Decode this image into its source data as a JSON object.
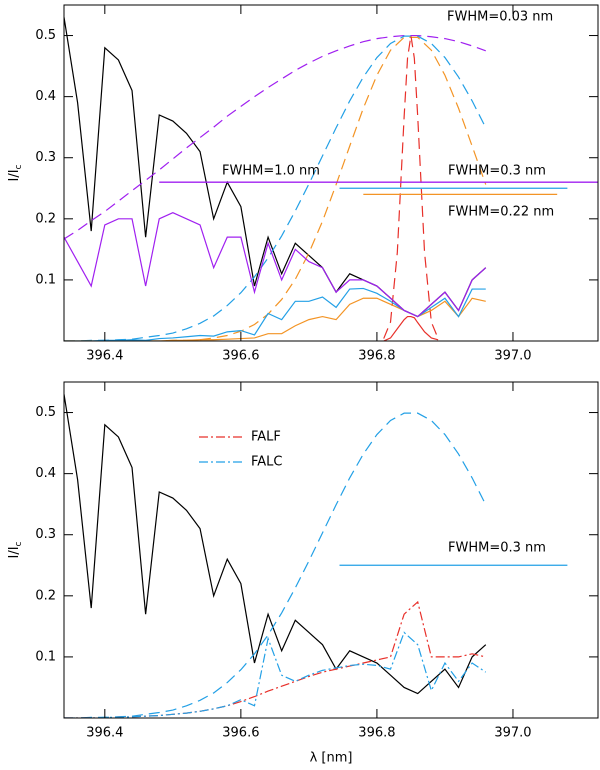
{
  "chart_data": [
    {
      "type": "line",
      "ylabel": [
        "I/I",
        "c"
      ],
      "xlim": [
        396.34,
        397.125
      ],
      "ylim": [
        0,
        0.55
      ],
      "xticks": [
        396.4,
        396.6,
        396.8,
        {
          "value": 397.0,
          "label": "397.0"
        }
      ],
      "yticks": [
        0.1,
        0.2,
        0.3,
        0.4,
        0.5
      ],
      "x": [
        396.34,
        396.36,
        396.38,
        396.4,
        396.42,
        396.44,
        396.46,
        396.48,
        396.5,
        396.52,
        396.54,
        396.56,
        396.58,
        396.6,
        396.62,
        396.64,
        396.66,
        396.68,
        396.7,
        396.72,
        396.74,
        396.76,
        396.78,
        396.8,
        396.82,
        396.84,
        396.86,
        396.88,
        396.9,
        396.92,
        396.94,
        396.96
      ],
      "series": [
        {
          "color": "#000000",
          "dash": "solid",
          "values": [
            0.53,
            0.39,
            0.18,
            0.48,
            0.46,
            0.41,
            0.17,
            0.37,
            0.36,
            0.34,
            0.31,
            0.2,
            0.26,
            0.22,
            0.09,
            0.17,
            0.11,
            0.16,
            0.14,
            0.12,
            0.08,
            0.11,
            0.1,
            0.09,
            0.07,
            0.05,
            0.04,
            0.06,
            0.08,
            0.05,
            0.1,
            0.12
          ]
        },
        {
          "color": "#a020f0",
          "dash": "dashed",
          "values": [
            0.167,
            0.181,
            0.197,
            0.212,
            0.229,
            0.246,
            0.263,
            0.28,
            0.298,
            0.316,
            0.333,
            0.35,
            0.368,
            0.384,
            0.4,
            0.415,
            0.429,
            0.443,
            0.455,
            0.466,
            0.475,
            0.483,
            0.49,
            0.495,
            0.498,
            0.5,
            0.5,
            0.498,
            0.495,
            0.49,
            0.483,
            0.475
          ]
        },
        {
          "color": "#23a0e6",
          "dash": "dashed",
          "values": [
            0,
            0,
            0.001,
            0.001,
            0.002,
            0.003,
            0.006,
            0.009,
            0.013,
            0.02,
            0.029,
            0.041,
            0.058,
            0.079,
            0.105,
            0.136,
            0.172,
            0.213,
            0.257,
            0.303,
            0.349,
            0.393,
            0.432,
            0.464,
            0.487,
            0.499,
            0.499,
            0.487,
            0.464,
            0.432,
            0.393,
            0.349
          ]
        },
        {
          "color": "#f39425",
          "dash": "dashed",
          "values": [
            0,
            0,
            0,
            0,
            0,
            0,
            0,
            0,
            0.001,
            0.001,
            0.002,
            0.005,
            0.009,
            0.016,
            0.027,
            0.044,
            0.068,
            0.101,
            0.144,
            0.196,
            0.256,
            0.319,
            0.381,
            0.435,
            0.476,
            0.497,
            0.497,
            0.476,
            0.435,
            0.381,
            0.319,
            0.256
          ]
        },
        {
          "color": "#e8302a",
          "dash": "dashed",
          "x": [
            396.81,
            396.82,
            396.83,
            396.84,
            396.845,
            396.85,
            396.855,
            396.86,
            396.87,
            396.88,
            396.89
          ],
          "values": [
            0.004,
            0.031,
            0.145,
            0.367,
            0.463,
            0.5,
            0.463,
            0.367,
            0.145,
            0.031,
            0.004
          ]
        },
        {
          "color": "#f39425",
          "dash": "solid",
          "values": [
            0,
            0,
            0,
            0,
            0,
            0,
            0,
            0,
            0.001,
            0.001,
            0.002,
            0.002,
            0.003,
            0.004,
            0.005,
            0.012,
            0.012,
            0.025,
            0.035,
            0.04,
            0.035,
            0.06,
            0.07,
            0.07,
            0.06,
            0.05,
            0.04,
            0.05,
            0.065,
            0.04,
            0.07,
            0.065
          ]
        },
        {
          "color": "#23a0e6",
          "dash": "solid",
          "values": [
            0,
            0,
            0,
            0.001,
            0.001,
            0.002,
            0.001,
            0.004,
            0.005,
            0.007,
            0.009,
            0.008,
            0.015,
            0.017,
            0.01,
            0.045,
            0.035,
            0.065,
            0.065,
            0.072,
            0.055,
            0.085,
            0.086,
            0.078,
            0.065,
            0.05,
            0.04,
            0.055,
            0.07,
            0.04,
            0.085,
            0.085
          ]
        },
        {
          "color": "#e8302a",
          "dash": "solid",
          "x": [
            396.81,
            396.82,
            396.83,
            396.84,
            396.845,
            396.85,
            396.855,
            396.86,
            396.87,
            396.88,
            396.89
          ],
          "values": [
            0,
            0.005,
            0.02,
            0.035,
            0.04,
            0.04,
            0.038,
            0.03,
            0.015,
            0.005,
            0.002
          ]
        },
        {
          "color": "#a020f0",
          "dash": "solid",
          "values": [
            0.17,
            0.13,
            0.09,
            0.19,
            0.2,
            0.2,
            0.09,
            0.2,
            0.21,
            0.2,
            0.19,
            0.12,
            0.17,
            0.17,
            0.08,
            0.16,
            0.1,
            0.15,
            0.13,
            0.12,
            0.08,
            0.1,
            0.1,
            0.09,
            0.07,
            0.05,
            0.04,
            0.06,
            0.08,
            0.05,
            0.1,
            0.12
          ]
        }
      ],
      "fwhm_lines": [
        {
          "x": [
            396.48,
            397.125
          ],
          "y": 0.26,
          "color": "#a020f0"
        },
        {
          "x": [
            396.745,
            397.08
          ],
          "y": 0.25,
          "color": "#23a0e6"
        },
        {
          "x": [
            396.78,
            397.065
          ],
          "y": 0.24,
          "color": "#f39425"
        }
      ],
      "annotations": [
        {
          "text": "FWHM=0.03 nm",
          "color": "#e8302a"
        },
        {
          "text": "FWHM=1.0 nm",
          "color": "#a020f0"
        },
        {
          "text": "FWHM=0.3 nm",
          "color": "#23a0e6"
        },
        {
          "text": "FWHM=0.22 nm",
          "color": "#f39425"
        }
      ]
    },
    {
      "type": "line",
      "ylabel": [
        "I/I",
        "c"
      ],
      "xlabel": "λ [nm]",
      "legend": "upper left",
      "xlim": [
        396.34,
        397.125
      ],
      "ylim": [
        0,
        0.55
      ],
      "xticks": [
        396.4,
        396.6,
        396.8,
        {
          "value": 397.0,
          "label": "397.0"
        }
      ],
      "yticks": [
        0.1,
        0.2,
        0.3,
        0.4,
        0.5
      ],
      "x": [
        396.34,
        396.36,
        396.38,
        396.4,
        396.42,
        396.44,
        396.46,
        396.48,
        396.5,
        396.52,
        396.54,
        396.56,
        396.58,
        396.6,
        396.62,
        396.64,
        396.66,
        396.68,
        396.7,
        396.72,
        396.74,
        396.76,
        396.78,
        396.8,
        396.82,
        396.84,
        396.86,
        396.88,
        396.9,
        396.92,
        396.94,
        396.96
      ],
      "series": [
        {
          "color": "#000000",
          "dash": "solid",
          "values": [
            0.53,
            0.39,
            0.18,
            0.48,
            0.46,
            0.41,
            0.17,
            0.37,
            0.36,
            0.34,
            0.31,
            0.2,
            0.26,
            0.22,
            0.09,
            0.17,
            0.11,
            0.16,
            0.14,
            0.12,
            0.08,
            0.11,
            0.1,
            0.09,
            0.07,
            0.05,
            0.04,
            0.06,
            0.08,
            0.05,
            0.1,
            0.12
          ]
        },
        {
          "color": "#23a0e6",
          "dash": "dashed",
          "values": [
            0,
            0,
            0.001,
            0.001,
            0.002,
            0.003,
            0.006,
            0.009,
            0.013,
            0.02,
            0.029,
            0.041,
            0.058,
            0.079,
            0.105,
            0.136,
            0.172,
            0.213,
            0.257,
            0.303,
            0.349,
            0.393,
            0.432,
            0.464,
            0.487,
            0.499,
            0.499,
            0.487,
            0.464,
            0.432,
            0.393,
            0.349
          ]
        },
        {
          "name": "FALF",
          "color": "#e8302a",
          "dash": "dashdot",
          "values": [
            0,
            0,
            0,
            0,
            0.001,
            0.002,
            0.003,
            0.004,
            0.006,
            0.008,
            0.011,
            0.015,
            0.02,
            0.027,
            0.035,
            0.044,
            0.052,
            0.06,
            0.068,
            0.075,
            0.08,
            0.085,
            0.09,
            0.095,
            0.1,
            0.17,
            0.19,
            0.1,
            0.1,
            0.1,
            0.105,
            0.1
          ]
        },
        {
          "name": "FALC",
          "color": "#23a0e6",
          "dash": "dashdot",
          "values": [
            0,
            0,
            0,
            0.001,
            0.001,
            0.002,
            0.003,
            0.004,
            0.006,
            0.008,
            0.011,
            0.015,
            0.02,
            0.03,
            0.02,
            0.13,
            0.07,
            0.06,
            0.07,
            0.078,
            0.082,
            0.086,
            0.088,
            0.086,
            0.08,
            0.14,
            0.12,
            0.045,
            0.09,
            0.06,
            0.09,
            0.075
          ]
        }
      ],
      "fwhm_lines": [
        {
          "x": [
            396.745,
            397.08
          ],
          "y": 0.25,
          "color": "#23a0e6"
        }
      ],
      "annotations": [
        {
          "text": "FWHM=0.3 nm",
          "color": "#23a0e6"
        }
      ]
    }
  ]
}
